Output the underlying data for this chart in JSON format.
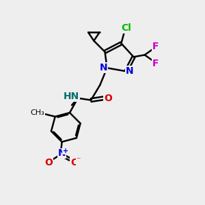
{
  "bg_color": "#eeeeee",
  "bond_color": "#000000",
  "colors": {
    "N": "#0000dd",
    "O": "#dd0000",
    "F": "#cc00cc",
    "Cl": "#00bb00",
    "H_label": "#007070",
    "C": "#000000"
  }
}
